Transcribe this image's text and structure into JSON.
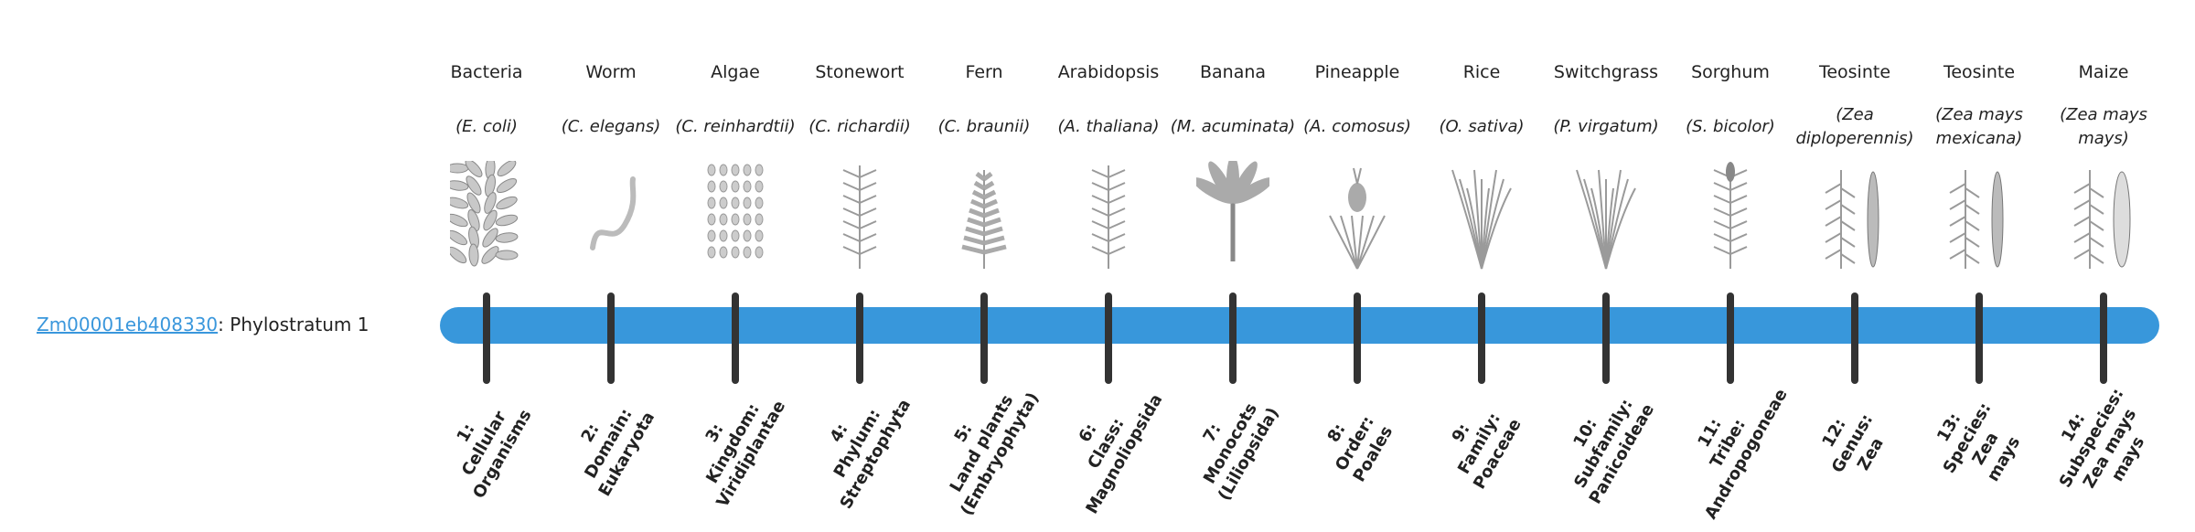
{
  "gene": {
    "id": "Zm00001eb408330",
    "suffix": ": Phylostratum 1"
  },
  "colors": {
    "bar": "#3897db",
    "tick": "#333333",
    "link": "#3a97dc"
  },
  "strata": [
    {
      "common": "Bacteria",
      "sci": "(E. coli)",
      "icon": "bacteria",
      "label": [
        "1:",
        "Cellular",
        "Organisms"
      ]
    },
    {
      "common": "Worm",
      "sci": "(C. elegans)",
      "icon": "worm",
      "label": [
        "2:",
        "Domain:",
        "Eukaryota"
      ]
    },
    {
      "common": "Algae",
      "sci": "(C. reinhardtii)",
      "icon": "algae",
      "label": [
        "3:",
        "Kingdom:",
        "Viridiplantae"
      ]
    },
    {
      "common": "Stonewort",
      "sci": "(C. richardii)",
      "icon": "stonewort",
      "label": [
        "4:",
        "Phylum:",
        "Streptophyta"
      ]
    },
    {
      "common": "Fern",
      "sci": "(C. braunii)",
      "icon": "fern",
      "label": [
        "5:",
        "Land plants",
        "(Embryophyta)"
      ]
    },
    {
      "common": "Arabidopsis",
      "sci": "(A. thaliana)",
      "icon": "arabidopsis",
      "label": [
        "6:",
        "Class:",
        "Magnoliopsida"
      ]
    },
    {
      "common": "Banana",
      "sci": "(M. acuminata)",
      "icon": "banana",
      "label": [
        "7:",
        "Monocots",
        "(Liliopsida)"
      ]
    },
    {
      "common": "Pineapple",
      "sci": "(A. comosus)",
      "icon": "pineapple",
      "label": [
        "8:",
        "Order:",
        "Poales"
      ]
    },
    {
      "common": "Rice",
      "sci": "(O. sativa)",
      "icon": "grass",
      "label": [
        "9:",
        "Family:",
        "Poaceae"
      ]
    },
    {
      "common": "Switchgrass",
      "sci": "(P. virgatum)",
      "icon": "grass",
      "label": [
        "10:",
        "Subfamily:",
        "Panicoideae"
      ]
    },
    {
      "common": "Sorghum",
      "sci": "(S. bicolor)",
      "icon": "sorghum",
      "label": [
        "11:",
        "Tribe:",
        "Andropogoneae"
      ]
    },
    {
      "common": "Teosinte",
      "sci": "(Zea diploperennis)",
      "icon": "teosinte",
      "label": [
        "12:",
        "Genus:",
        "Zea"
      ]
    },
    {
      "common": "Teosinte",
      "sci": "(Zea mays mexicana)",
      "icon": "teosinte",
      "label": [
        "13:",
        "Species:",
        "Zea",
        "mays"
      ]
    },
    {
      "common": "Maize",
      "sci": "(Zea mays mays)",
      "icon": "maize",
      "label": [
        "14:",
        "Subspecies:",
        "Zea mays",
        "mays"
      ]
    }
  ]
}
